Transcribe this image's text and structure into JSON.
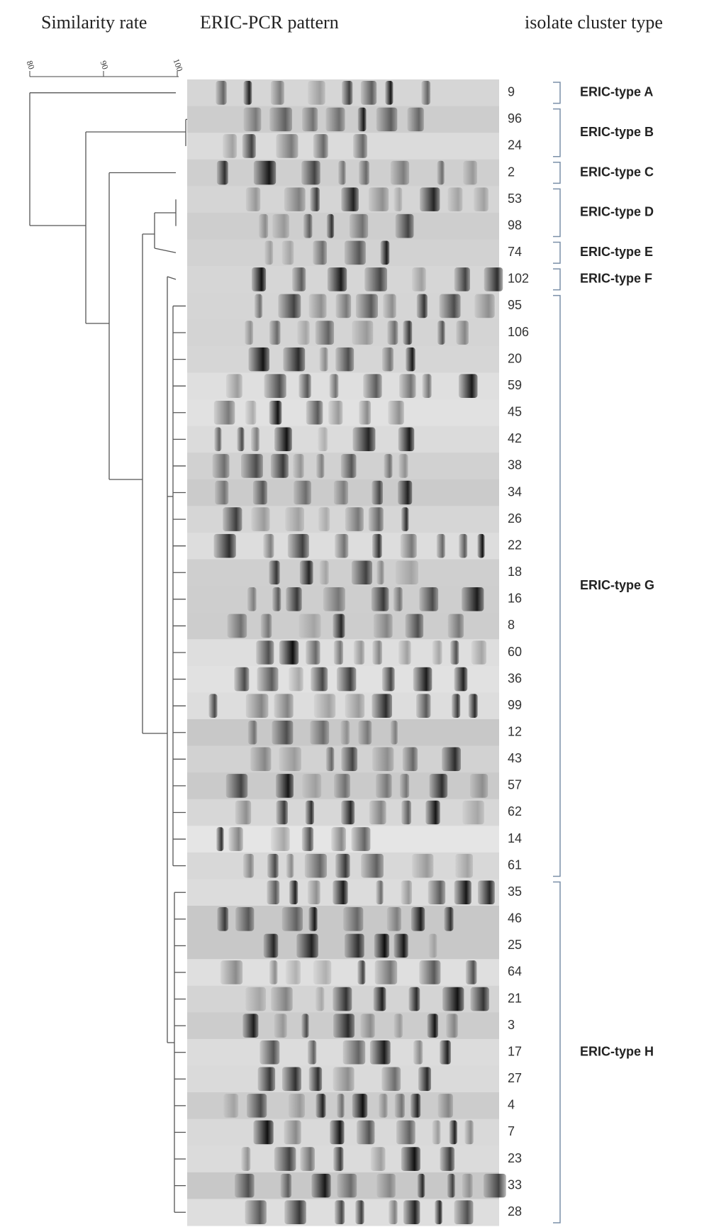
{
  "header": {
    "similarity": "Similarity rate",
    "pattern": "ERIC-PCR pattern",
    "cluster": "isolate cluster type"
  },
  "scale": [
    "80",
    "90",
    "100"
  ],
  "isolates": [
    "9",
    "96",
    "24",
    "2",
    "53",
    "98",
    "74",
    "102",
    "95",
    "106",
    "20",
    "59",
    "45",
    "42",
    "38",
    "34",
    "26",
    "22",
    "18",
    "16",
    "8",
    "60",
    "36",
    "99",
    "12",
    "43",
    "57",
    "62",
    "14",
    "61",
    "35",
    "46",
    "25",
    "64",
    "21",
    "3",
    "17",
    "27",
    "4",
    "7",
    "23",
    "33",
    "28"
  ],
  "clusters": [
    "ERIC-type A",
    "ERIC-type B",
    "ERIC-type C",
    "ERIC-type D",
    "ERIC-type E",
    "ERIC-type F",
    "ERIC-type G",
    "ERIC-type H"
  ]
}
